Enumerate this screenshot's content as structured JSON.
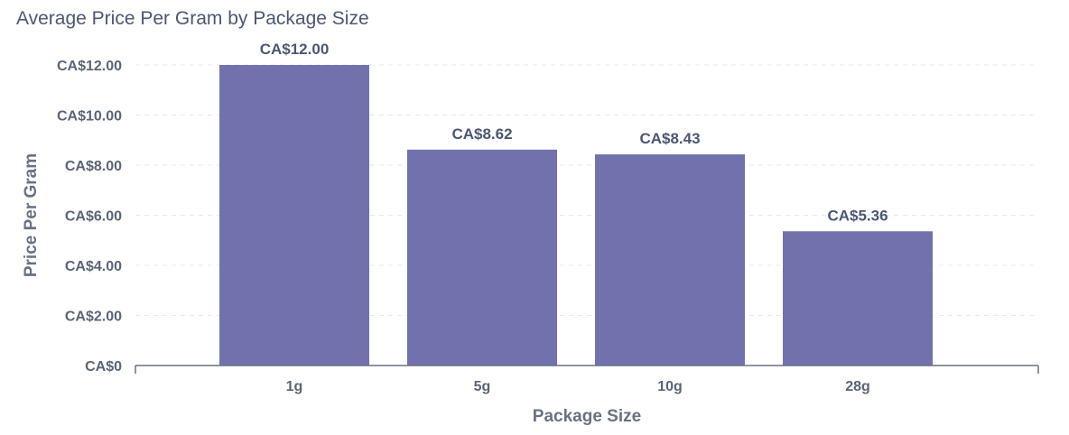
{
  "chart_data": {
    "type": "bar",
    "title": "Average Price Per Gram by Package Size",
    "xlabel": "Package Size",
    "ylabel": "Price Per Gram",
    "categories": [
      "1g",
      "5g",
      "10g",
      "28g"
    ],
    "values": [
      12.0,
      8.62,
      8.43,
      5.36
    ],
    "value_labels": [
      "CA$12.00",
      "CA$8.62",
      "CA$8.43",
      "CA$5.36"
    ],
    "ylim": [
      0,
      12
    ],
    "yticks": [
      0,
      2,
      4,
      6,
      8,
      10,
      12
    ],
    "ytick_labels": [
      "CA$0",
      "CA$2.00",
      "CA$4.00",
      "CA$6.00",
      "CA$8.00",
      "CA$10.00",
      "CA$12.00"
    ],
    "grid": true,
    "legend": "none",
    "bar_color": "#7172ad"
  }
}
